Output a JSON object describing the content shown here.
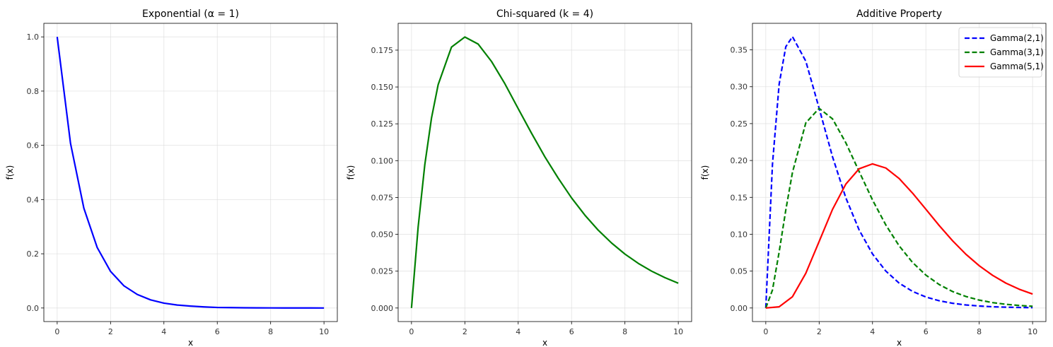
{
  "chart_data": [
    {
      "type": "line",
      "title": "Exponential (α = 1)",
      "xlabel": "x",
      "ylabel": "f(x)",
      "xlim": [
        -0.5,
        10.5
      ],
      "ylim": [
        -0.05,
        1.05
      ],
      "xticks": [
        0,
        2,
        4,
        6,
        8,
        10
      ],
      "yticks": [
        0.0,
        0.2,
        0.4,
        0.6,
        0.8,
        1.0
      ],
      "ytick_labels": [
        "0.0",
        "0.2",
        "0.4",
        "0.6",
        "0.8",
        "1.0"
      ],
      "grid": true,
      "series": [
        {
          "color": "#0000ff",
          "style": "solid",
          "x": [
            0,
            0.5,
            1,
            1.5,
            2,
            2.5,
            3,
            3.5,
            4,
            4.5,
            5,
            5.5,
            6,
            6.5,
            7,
            7.5,
            8,
            8.5,
            9,
            9.5,
            10
          ],
          "y": [
            1.0,
            0.607,
            0.368,
            0.223,
            0.135,
            0.082,
            0.05,
            0.03,
            0.018,
            0.011,
            0.007,
            0.004,
            0.002,
            0.0015,
            0.0009,
            0.0006,
            0.0003,
            0.0002,
            0.0001,
            0.0001,
            0.0
          ]
        }
      ]
    },
    {
      "type": "line",
      "title": "Chi-squared (k = 4)",
      "xlabel": "x",
      "ylabel": "f(x)",
      "xlim": [
        -0.5,
        10.5
      ],
      "ylim": [
        -0.0092,
        0.1932
      ],
      "xticks": [
        0,
        2,
        4,
        6,
        8,
        10
      ],
      "yticks": [
        0.0,
        0.025,
        0.05,
        0.075,
        0.1,
        0.125,
        0.15,
        0.175
      ],
      "ytick_labels": [
        "0.000",
        "0.025",
        "0.050",
        "0.075",
        "0.100",
        "0.125",
        "0.150",
        "0.175"
      ],
      "grid": true,
      "series": [
        {
          "color": "#008000",
          "style": "solid",
          "x": [
            0,
            0.25,
            0.5,
            0.75,
            1,
            1.5,
            2,
            2.5,
            3,
            3.5,
            4,
            4.5,
            5,
            5.5,
            6,
            6.5,
            7,
            7.5,
            8,
            8.5,
            9,
            9.5,
            10
          ],
          "y": [
            0.0,
            0.0551,
            0.0974,
            0.1289,
            0.1516,
            0.1771,
            0.1839,
            0.1791,
            0.1673,
            0.1522,
            0.1353,
            0.1186,
            0.1026,
            0.0881,
            0.0747,
            0.063,
            0.0528,
            0.0441,
            0.0366,
            0.0303,
            0.025,
            0.0206,
            0.0168
          ]
        }
      ]
    },
    {
      "type": "line",
      "title": "Additive Property",
      "xlabel": "x",
      "ylabel": "f(x)",
      "xlim": [
        -0.5,
        10.5
      ],
      "ylim": [
        -0.0184,
        0.386
      ],
      "xticks": [
        0,
        2,
        4,
        6,
        8,
        10
      ],
      "yticks": [
        0.0,
        0.05,
        0.1,
        0.15,
        0.2,
        0.25,
        0.3,
        0.35
      ],
      "ytick_labels": [
        "0.00",
        "0.05",
        "0.10",
        "0.15",
        "0.20",
        "0.25",
        "0.30",
        "0.35"
      ],
      "grid": true,
      "legend": "top-right",
      "series": [
        {
          "name": "Gamma(2,1)",
          "color": "#0000ff",
          "style": "dashed",
          "x": [
            0,
            0.25,
            0.5,
            0.75,
            1,
            1.5,
            2,
            2.5,
            3,
            3.5,
            4,
            4.5,
            5,
            5.5,
            6,
            6.5,
            7,
            7.5,
            8,
            8.5,
            9,
            9.5,
            10
          ],
          "y": [
            0.0,
            0.1947,
            0.3033,
            0.3543,
            0.3679,
            0.3347,
            0.2707,
            0.2052,
            0.1494,
            0.1057,
            0.0733,
            0.05,
            0.0337,
            0.0225,
            0.0149,
            0.0098,
            0.0064,
            0.0041,
            0.0027,
            0.0017,
            0.0011,
            0.0007,
            0.0005
          ]
        },
        {
          "name": "Gamma(3,1)",
          "color": "#008000",
          "style": "dashed",
          "x": [
            0,
            0.25,
            0.5,
            0.75,
            1,
            1.5,
            2,
            2.5,
            3,
            3.5,
            4,
            4.5,
            5,
            5.5,
            6,
            6.5,
            7,
            7.5,
            8,
            8.5,
            9,
            9.5,
            10
          ],
          "y": [
            0.0,
            0.0243,
            0.0758,
            0.1329,
            0.1839,
            0.251,
            0.2707,
            0.2565,
            0.224,
            0.185,
            0.1465,
            0.1125,
            0.0842,
            0.0618,
            0.0446,
            0.0318,
            0.0223,
            0.0156,
            0.0107,
            0.0073,
            0.005,
            0.0034,
            0.0023
          ]
        },
        {
          "name": "Gamma(5,1)",
          "color": "#ff0000",
          "style": "solid",
          "x": [
            0,
            0.5,
            1,
            1.5,
            2,
            2.5,
            3,
            3.5,
            4,
            4.5,
            5,
            5.5,
            6,
            6.5,
            7,
            7.5,
            8,
            8.5,
            9,
            9.5,
            10
          ],
          "y": [
            0.0,
            0.0016,
            0.0153,
            0.0471,
            0.0902,
            0.1336,
            0.168,
            0.1888,
            0.1954,
            0.1898,
            0.1755,
            0.1558,
            0.1339,
            0.1118,
            0.0912,
            0.0729,
            0.0573,
            0.0443,
            0.0337,
            0.0254,
            0.0189
          ]
        }
      ]
    }
  ]
}
